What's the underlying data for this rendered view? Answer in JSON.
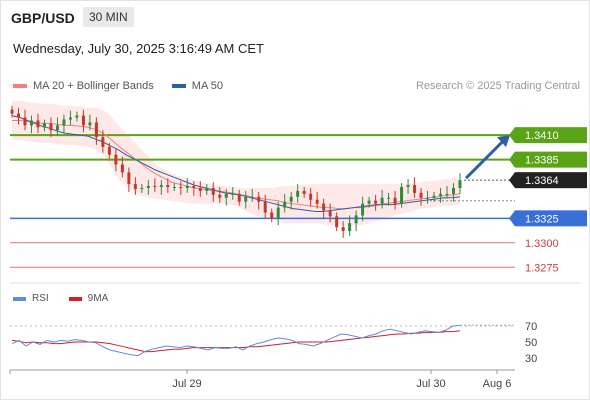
{
  "header": {
    "pair": "GBP/USD",
    "timeframe": "30 MIN"
  },
  "datetime": "Wednesday, July 30, 2025 3:16:49 AM CET",
  "legend": {
    "ma20": "MA 20 + Bollinger Bands",
    "ma50": "MA 50",
    "credit": "Research © 2025 Trading Central"
  },
  "rsi_legend": {
    "rsi": "RSI",
    "ma": "9MA"
  },
  "colors": {
    "up": "#2e8b3a",
    "down": "#c0392b",
    "ma20": "#f08080",
    "ma50": "#2f5fa3",
    "band": "#fde0e0",
    "green_level": "#5aa316",
    "blue_level": "#3a6fd8",
    "red_level": "#e87070",
    "arrow": "#2f5fa3",
    "rsi": "#5b8de0",
    "rsi_ma": "#d42020"
  },
  "chart_data": [
    {
      "type": "candlestick",
      "title": "GBP/USD",
      "x_labels": [
        "Jul 29",
        "Jul 30",
        "Aug 6"
      ],
      "y_labels": [
        "1.3410",
        "1.3385",
        "1.3364",
        "1.3325",
        "1.3300",
        "1.3275"
      ],
      "ylim": [
        1.3262,
        1.345
      ],
      "current_price": 1.3364,
      "levels": [
        {
          "value": 1.341,
          "label": "1.3410",
          "kind": "resistance"
        },
        {
          "value": 1.3385,
          "label": "1.3385",
          "kind": "resistance"
        },
        {
          "value": 1.3325,
          "label": "1.3325",
          "kind": "pivot"
        },
        {
          "value": 1.33,
          "label": "1.3300",
          "kind": "support"
        },
        {
          "value": 1.3275,
          "label": "1.3275",
          "kind": "support"
        }
      ],
      "closes": [
        1.3432,
        1.3428,
        1.342,
        1.3425,
        1.3418,
        1.3422,
        1.3415,
        1.342,
        1.3426,
        1.3428,
        1.343,
        1.342,
        1.3423,
        1.3408,
        1.3398,
        1.339,
        1.338,
        1.3372,
        1.336,
        1.3355,
        1.3356,
        1.3358,
        1.3357,
        1.3359,
        1.3357,
        1.3357,
        1.3356,
        1.3358,
        1.3356,
        1.3353,
        1.3356,
        1.3349,
        1.3346,
        1.335,
        1.335,
        1.3342,
        1.3347,
        1.3347,
        1.3342,
        1.3331,
        1.3325,
        1.3336,
        1.3342,
        1.3347,
        1.3353,
        1.335,
        1.3344,
        1.334,
        1.3333,
        1.3327,
        1.3316,
        1.3312,
        1.332,
        1.3328,
        1.334,
        1.3343,
        1.334,
        1.3346,
        1.3346,
        1.334,
        1.3357,
        1.3359,
        1.3351,
        1.3346,
        1.3346,
        1.3348,
        1.335,
        1.335,
        1.3356,
        1.3364
      ],
      "ma50": [
        1.343,
        1.3428,
        1.3425,
        1.3422,
        1.3419,
        1.3417,
        1.3414,
        1.3412,
        1.3411,
        1.341,
        1.3409,
        1.3406,
        1.3403,
        1.3399,
        1.3395,
        1.339,
        1.3386,
        1.3382,
        1.3378,
        1.3374,
        1.3371,
        1.3368,
        1.3365,
        1.3362,
        1.3359,
        1.3357,
        1.3355,
        1.3353,
        1.3351,
        1.335,
        1.3349,
        1.3347,
        1.3345,
        1.3343,
        1.3341,
        1.3339,
        1.3337,
        1.3335,
        1.3334,
        1.3333,
        1.3332,
        1.3332,
        1.3333,
        1.3334,
        1.3335,
        1.3336,
        1.3337,
        1.3338,
        1.3339,
        1.3339,
        1.3339,
        1.334,
        1.3341,
        1.3342,
        1.3343,
        1.3344,
        1.3345,
        1.3346,
        1.3346,
        1.3347
      ],
      "ma20": [
        1.3425,
        1.3425,
        1.3424,
        1.3423,
        1.3422,
        1.3422,
        1.3421,
        1.342,
        1.342,
        1.3419,
        1.3418,
        1.3416,
        1.3412,
        1.3406,
        1.3399,
        1.3393,
        1.3387,
        1.3381,
        1.3375,
        1.337,
        1.3366,
        1.3362,
        1.336,
        1.3358,
        1.3356,
        1.3355,
        1.3354,
        1.3353,
        1.3352,
        1.3351,
        1.3349,
        1.3348,
        1.3346,
        1.3345,
        1.3344,
        1.3343,
        1.3341,
        1.334,
        1.3339,
        1.3338,
        1.3337,
        1.3336,
        1.3336,
        1.3335,
        1.3335,
        1.3336,
        1.3336,
        1.3337,
        1.3338,
        1.334,
        1.3341,
        1.3342,
        1.3343,
        1.3344,
        1.3345,
        1.3346,
        1.3347,
        1.3348,
        1.3349,
        1.335
      ],
      "bb_upper": [
        1.3445,
        1.3445,
        1.3444,
        1.3443,
        1.3442,
        1.3442,
        1.3441,
        1.344,
        1.344,
        1.3439,
        1.3438,
        1.3438,
        1.3436,
        1.343,
        1.342,
        1.3412,
        1.3404,
        1.3396,
        1.3388,
        1.338,
        1.3375,
        1.3371,
        1.3368,
        1.3366,
        1.3364,
        1.3362,
        1.336,
        1.3359,
        1.3358,
        1.3357,
        1.3356,
        1.3356,
        1.3356,
        1.3356,
        1.3356,
        1.3357,
        1.3358,
        1.3358,
        1.3359,
        1.336,
        1.336,
        1.336,
        1.336,
        1.336,
        1.336,
        1.336,
        1.336,
        1.336,
        1.336,
        1.336,
        1.336,
        1.336,
        1.336,
        1.3361,
        1.3362,
        1.3363,
        1.3364,
        1.3365,
        1.3366,
        1.3366
      ],
      "bb_lower": [
        1.3405,
        1.3405,
        1.3404,
        1.3403,
        1.3402,
        1.3402,
        1.3401,
        1.34,
        1.34,
        1.3399,
        1.3398,
        1.3395,
        1.339,
        1.3378,
        1.3365,
        1.3358,
        1.3352,
        1.3348,
        1.3346,
        1.3345,
        1.3344,
        1.3343,
        1.3342,
        1.3341,
        1.334,
        1.334,
        1.334,
        1.334,
        1.334,
        1.3339,
        1.3336,
        1.3332,
        1.3328,
        1.3326,
        1.3324,
        1.3322,
        1.332,
        1.332,
        1.332,
        1.332,
        1.332,
        1.3319,
        1.3318,
        1.3318,
        1.3318,
        1.3318,
        1.3318,
        1.332,
        1.3322,
        1.3325,
        1.3327,
        1.3329,
        1.3331,
        1.3333,
        1.3335,
        1.3336,
        1.3337,
        1.3338,
        1.3338,
        1.3339
      ],
      "forecast_target": 1.341
    },
    {
      "type": "line",
      "title": "RSI",
      "y_labels": [
        "70",
        "50",
        "30"
      ],
      "ylim": [
        20,
        80
      ],
      "series": [
        {
          "name": "RSI",
          "values": [
            48,
            52,
            45,
            50,
            47,
            52,
            50,
            52,
            51,
            53,
            52,
            50,
            49,
            44,
            40,
            38,
            36,
            34,
            33,
            38,
            41,
            43,
            45,
            44,
            43,
            45,
            44,
            42,
            40,
            43,
            42,
            42,
            44,
            40,
            45,
            48,
            50,
            53,
            55,
            54,
            52,
            48,
            47,
            45,
            48,
            52,
            56,
            60,
            59,
            57,
            55,
            58,
            60,
            64,
            66,
            64,
            62,
            60,
            62,
            64,
            63,
            62,
            65,
            70,
            71
          ]
        },
        {
          "name": "9MA",
          "values": [
            52,
            51,
            49,
            50,
            49,
            49,
            48,
            48,
            49,
            50,
            50,
            50,
            50,
            49,
            48,
            46,
            44,
            42,
            40,
            38,
            38,
            39,
            40,
            41,
            41,
            42,
            43,
            43,
            43,
            43,
            43,
            43,
            43,
            43,
            44,
            44,
            45,
            46,
            47,
            48,
            49,
            50,
            50,
            50,
            50,
            50,
            51,
            52,
            53,
            54,
            55,
            56,
            57,
            58,
            59,
            60,
            60,
            61,
            61,
            62,
            62,
            62,
            63,
            63,
            64
          ]
        }
      ]
    }
  ]
}
